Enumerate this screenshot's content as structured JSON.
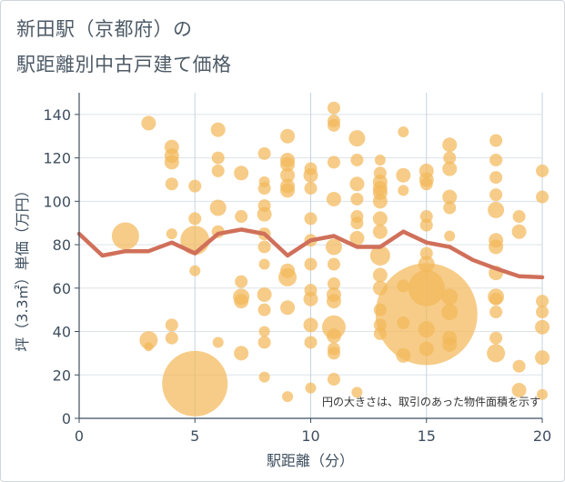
{
  "title_line1": "新田駅（京都府）の",
  "title_line2": "駅距離別中古戸建て価格",
  "chart_data": {
    "type": "scatter",
    "xlabel": "駅距離（分）",
    "ylabel": "坪（3.3㎡）単価（万円）",
    "xlim": [
      0,
      20
    ],
    "ylim": [
      0,
      150
    ],
    "x_ticks": [
      "0",
      "5",
      "10",
      "15",
      "20"
    ],
    "y_ticks": [
      "0",
      "20",
      "40",
      "60",
      "80",
      "100",
      "120",
      "140"
    ],
    "grid": true,
    "annotation": "円の大きさは、取引のあった物件面積を示す",
    "bubble_color": "#f2b85a",
    "line_color": "#d0705a",
    "points": [
      {
        "x": 3,
        "y": 136,
        "s": 8
      },
      {
        "x": 3,
        "y": 36,
        "s": 10
      },
      {
        "x": 3,
        "y": 33,
        "s": 5
      },
      {
        "x": 2,
        "y": 84,
        "s": 15
      },
      {
        "x": 4,
        "y": 125,
        "s": 8
      },
      {
        "x": 4,
        "y": 121,
        "s": 8
      },
      {
        "x": 4,
        "y": 118,
        "s": 8
      },
      {
        "x": 4,
        "y": 108,
        "s": 7
      },
      {
        "x": 4,
        "y": 85,
        "s": 6
      },
      {
        "x": 4,
        "y": 43,
        "s": 7
      },
      {
        "x": 4,
        "y": 37,
        "s": 7
      },
      {
        "x": 5,
        "y": 107,
        "s": 7
      },
      {
        "x": 5,
        "y": 92,
        "s": 7
      },
      {
        "x": 5,
        "y": 82,
        "s": 16
      },
      {
        "x": 5,
        "y": 68,
        "s": 6
      },
      {
        "x": 5,
        "y": 16,
        "s": 36
      },
      {
        "x": 6,
        "y": 133,
        "s": 8
      },
      {
        "x": 6,
        "y": 120,
        "s": 7
      },
      {
        "x": 6,
        "y": 114,
        "s": 7
      },
      {
        "x": 6,
        "y": 97,
        "s": 9
      },
      {
        "x": 6,
        "y": 86,
        "s": 7
      },
      {
        "x": 6,
        "y": 35,
        "s": 6
      },
      {
        "x": 7,
        "y": 113,
        "s": 8
      },
      {
        "x": 7,
        "y": 93,
        "s": 7
      },
      {
        "x": 7,
        "y": 63,
        "s": 7
      },
      {
        "x": 7,
        "y": 56,
        "s": 9
      },
      {
        "x": 7,
        "y": 54,
        "s": 8
      },
      {
        "x": 7,
        "y": 30,
        "s": 8
      },
      {
        "x": 8,
        "y": 122,
        "s": 7
      },
      {
        "x": 8,
        "y": 109,
        "s": 6
      },
      {
        "x": 8,
        "y": 106,
        "s": 7
      },
      {
        "x": 8,
        "y": 98,
        "s": 7
      },
      {
        "x": 8,
        "y": 94,
        "s": 8
      },
      {
        "x": 8,
        "y": 85,
        "s": 7
      },
      {
        "x": 8,
        "y": 79,
        "s": 7
      },
      {
        "x": 8,
        "y": 71,
        "s": 6
      },
      {
        "x": 8,
        "y": 57,
        "s": 8
      },
      {
        "x": 8,
        "y": 50,
        "s": 7
      },
      {
        "x": 8,
        "y": 40,
        "s": 6
      },
      {
        "x": 8,
        "y": 35,
        "s": 7
      },
      {
        "x": 8,
        "y": 19,
        "s": 6
      },
      {
        "x": 9,
        "y": 130,
        "s": 8
      },
      {
        "x": 9,
        "y": 119,
        "s": 8
      },
      {
        "x": 9,
        "y": 117,
        "s": 8
      },
      {
        "x": 9,
        "y": 112,
        "s": 8
      },
      {
        "x": 9,
        "y": 107,
        "s": 8
      },
      {
        "x": 9,
        "y": 105,
        "s": 8
      },
      {
        "x": 9,
        "y": 68,
        "s": 8
      },
      {
        "x": 9,
        "y": 65,
        "s": 10
      },
      {
        "x": 9,
        "y": 51,
        "s": 8
      },
      {
        "x": 9,
        "y": 10,
        "s": 6
      },
      {
        "x": 10,
        "y": 115,
        "s": 7
      },
      {
        "x": 10,
        "y": 112,
        "s": 8
      },
      {
        "x": 10,
        "y": 106,
        "s": 7
      },
      {
        "x": 10,
        "y": 92,
        "s": 7
      },
      {
        "x": 10,
        "y": 82,
        "s": 7
      },
      {
        "x": 10,
        "y": 71,
        "s": 7
      },
      {
        "x": 10,
        "y": 59,
        "s": 7
      },
      {
        "x": 10,
        "y": 55,
        "s": 8
      },
      {
        "x": 10,
        "y": 43,
        "s": 8
      },
      {
        "x": 10,
        "y": 35,
        "s": 7
      },
      {
        "x": 10,
        "y": 14,
        "s": 6
      },
      {
        "x": 11,
        "y": 143,
        "s": 7
      },
      {
        "x": 11,
        "y": 137,
        "s": 7
      },
      {
        "x": 11,
        "y": 135,
        "s": 7
      },
      {
        "x": 11,
        "y": 118,
        "s": 7
      },
      {
        "x": 11,
        "y": 101,
        "s": 8
      },
      {
        "x": 11,
        "y": 79,
        "s": 9
      },
      {
        "x": 11,
        "y": 71,
        "s": 7
      },
      {
        "x": 11,
        "y": 62,
        "s": 7
      },
      {
        "x": 11,
        "y": 57,
        "s": 8
      },
      {
        "x": 11,
        "y": 54,
        "s": 8
      },
      {
        "x": 11,
        "y": 42,
        "s": 13
      },
      {
        "x": 11,
        "y": 38,
        "s": 8
      },
      {
        "x": 11,
        "y": 32,
        "s": 7
      },
      {
        "x": 11,
        "y": 30,
        "s": 7
      },
      {
        "x": 11,
        "y": 18,
        "s": 7
      },
      {
        "x": 12,
        "y": 129,
        "s": 9
      },
      {
        "x": 12,
        "y": 119,
        "s": 7
      },
      {
        "x": 12,
        "y": 108,
        "s": 8
      },
      {
        "x": 12,
        "y": 101,
        "s": 7
      },
      {
        "x": 12,
        "y": 93,
        "s": 7
      },
      {
        "x": 12,
        "y": 90,
        "s": 7
      },
      {
        "x": 12,
        "y": 83,
        "s": 8
      },
      {
        "x": 12,
        "y": 12,
        "s": 6
      },
      {
        "x": 13,
        "y": 119,
        "s": 6
      },
      {
        "x": 13,
        "y": 113,
        "s": 7
      },
      {
        "x": 13,
        "y": 109,
        "s": 8
      },
      {
        "x": 13,
        "y": 106,
        "s": 8
      },
      {
        "x": 13,
        "y": 104,
        "s": 8
      },
      {
        "x": 13,
        "y": 100,
        "s": 8
      },
      {
        "x": 13,
        "y": 92,
        "s": 8
      },
      {
        "x": 13,
        "y": 86,
        "s": 8
      },
      {
        "x": 13,
        "y": 75,
        "s": 11
      },
      {
        "x": 13,
        "y": 66,
        "s": 8
      },
      {
        "x": 13,
        "y": 60,
        "s": 8
      },
      {
        "x": 13,
        "y": 50,
        "s": 7
      },
      {
        "x": 13,
        "y": 43,
        "s": 7
      },
      {
        "x": 13,
        "y": 39,
        "s": 7
      },
      {
        "x": 14,
        "y": 132,
        "s": 6
      },
      {
        "x": 14,
        "y": 112,
        "s": 8
      },
      {
        "x": 14,
        "y": 105,
        "s": 6
      },
      {
        "x": 14,
        "y": 61,
        "s": 7
      },
      {
        "x": 14,
        "y": 44,
        "s": 7
      },
      {
        "x": 14,
        "y": 29,
        "s": 8
      },
      {
        "x": 15,
        "y": 114,
        "s": 8
      },
      {
        "x": 15,
        "y": 110,
        "s": 8
      },
      {
        "x": 15,
        "y": 108,
        "s": 7
      },
      {
        "x": 15,
        "y": 93,
        "s": 7
      },
      {
        "x": 15,
        "y": 89,
        "s": 7
      },
      {
        "x": 15,
        "y": 76,
        "s": 7
      },
      {
        "x": 15,
        "y": 71,
        "s": 9
      },
      {
        "x": 15,
        "y": 60,
        "s": 20
      },
      {
        "x": 15,
        "y": 48,
        "s": 56
      },
      {
        "x": 15,
        "y": 41,
        "s": 9
      },
      {
        "x": 15,
        "y": 32,
        "s": 8
      },
      {
        "x": 16,
        "y": 126,
        "s": 8
      },
      {
        "x": 16,
        "y": 120,
        "s": 7
      },
      {
        "x": 16,
        "y": 115,
        "s": 8
      },
      {
        "x": 16,
        "y": 102,
        "s": 8
      },
      {
        "x": 16,
        "y": 97,
        "s": 7
      },
      {
        "x": 16,
        "y": 84,
        "s": 6
      },
      {
        "x": 16,
        "y": 56,
        "s": 9
      },
      {
        "x": 16,
        "y": 49,
        "s": 9
      },
      {
        "x": 16,
        "y": 37,
        "s": 8
      },
      {
        "x": 16,
        "y": 34,
        "s": 8
      },
      {
        "x": 18,
        "y": 128,
        "s": 7
      },
      {
        "x": 18,
        "y": 119,
        "s": 7
      },
      {
        "x": 18,
        "y": 111,
        "s": 7
      },
      {
        "x": 18,
        "y": 103,
        "s": 7
      },
      {
        "x": 18,
        "y": 96,
        "s": 9
      },
      {
        "x": 18,
        "y": 82,
        "s": 8
      },
      {
        "x": 18,
        "y": 79,
        "s": 8
      },
      {
        "x": 18,
        "y": 67,
        "s": 8
      },
      {
        "x": 18,
        "y": 56,
        "s": 9
      },
      {
        "x": 18,
        "y": 55,
        "s": 7
      },
      {
        "x": 18,
        "y": 49,
        "s": 7
      },
      {
        "x": 18,
        "y": 37,
        "s": 7
      },
      {
        "x": 18,
        "y": 30,
        "s": 10
      },
      {
        "x": 19,
        "y": 93,
        "s": 7
      },
      {
        "x": 19,
        "y": 86,
        "s": 8
      },
      {
        "x": 19,
        "y": 24,
        "s": 7
      },
      {
        "x": 19,
        "y": 13,
        "s": 8
      },
      {
        "x": 20,
        "y": 114,
        "s": 7
      },
      {
        "x": 20,
        "y": 102,
        "s": 7
      },
      {
        "x": 20,
        "y": 54,
        "s": 7
      },
      {
        "x": 20,
        "y": 49,
        "s": 7
      },
      {
        "x": 20,
        "y": 42,
        "s": 8
      },
      {
        "x": 20,
        "y": 28,
        "s": 8
      },
      {
        "x": 20,
        "y": 11,
        "s": 6
      }
    ],
    "line": {
      "x": [
        0,
        1,
        2,
        3,
        4,
        5,
        6,
        7,
        8,
        9,
        10,
        11,
        12,
        13,
        14,
        15,
        16,
        17,
        18,
        19,
        20
      ],
      "y": [
        85,
        75,
        77,
        77,
        81,
        76,
        85,
        87,
        85,
        75,
        82,
        84,
        79,
        79,
        86,
        81,
        79,
        73,
        69,
        65.5,
        65
      ]
    }
  }
}
